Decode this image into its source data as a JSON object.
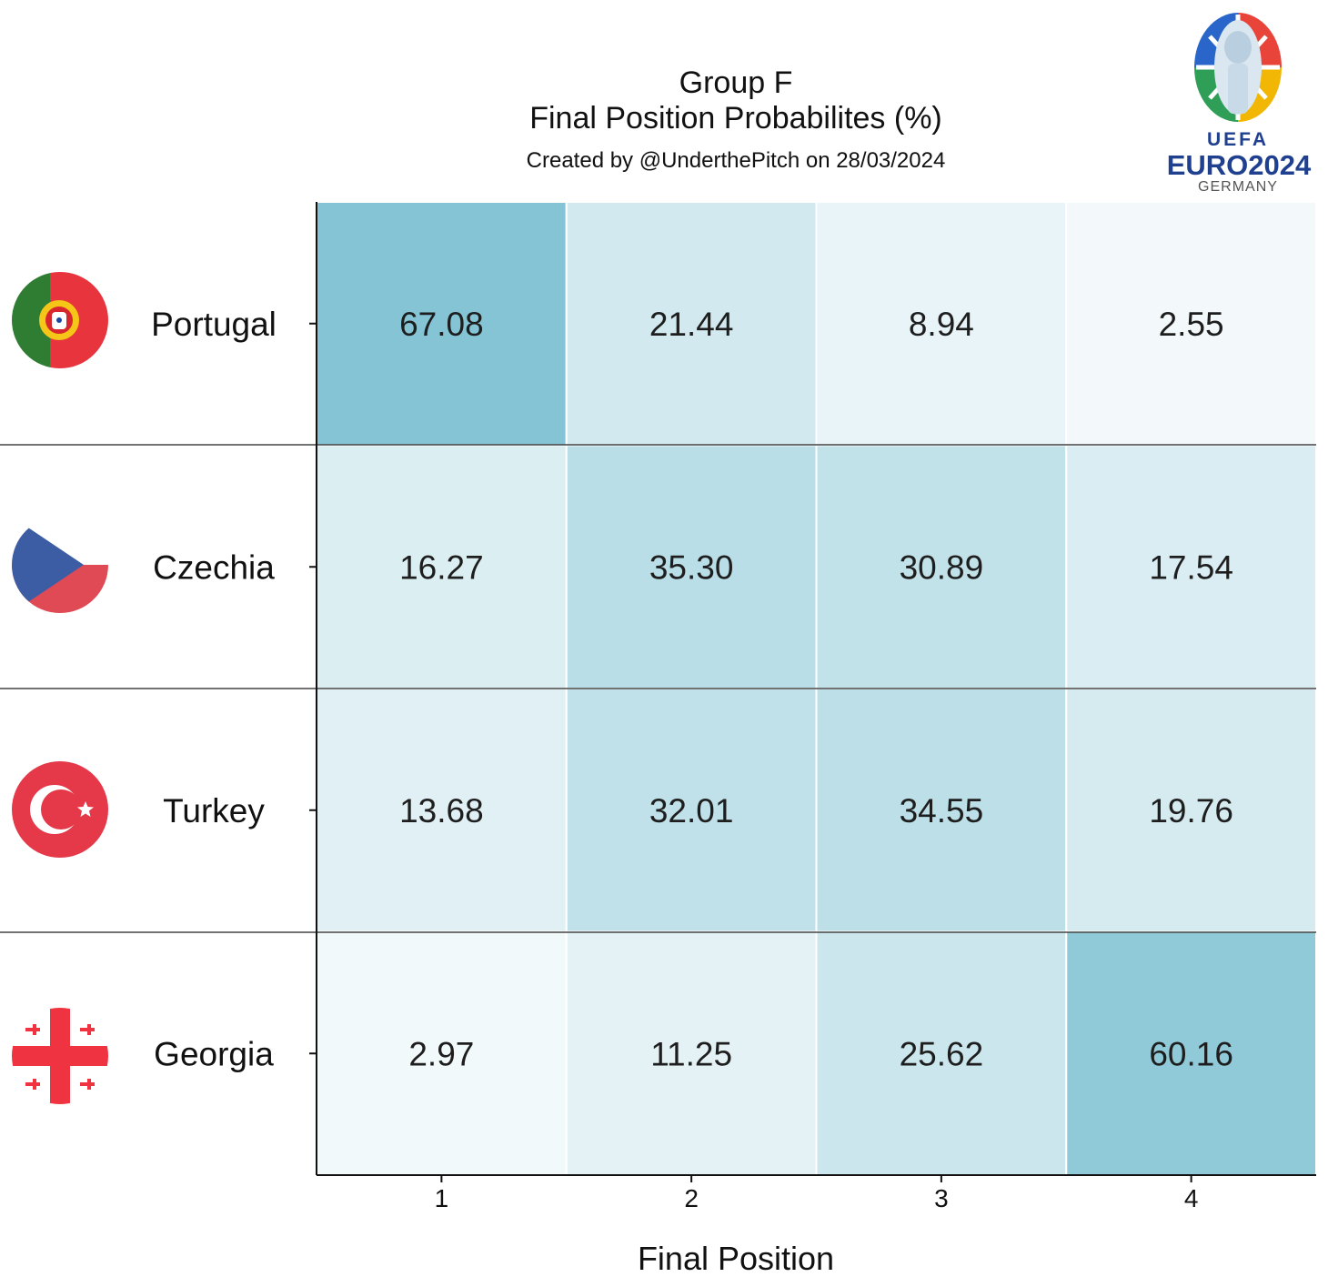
{
  "chart_data": {
    "type": "heatmap",
    "title": "Group F",
    "subtitle": "Final Position Probabilites (%)",
    "credit": "Created by @UnderthePitch on 28/03/2024",
    "xlabel": "Final Position",
    "ylabel": "",
    "x": [
      "1",
      "2",
      "3",
      "4"
    ],
    "y": [
      "Portugal",
      "Czechia",
      "Turkey",
      "Georgia"
    ],
    "values": [
      [
        67.08,
        21.44,
        8.94,
        2.55
      ],
      [
        16.27,
        35.3,
        30.89,
        17.54
      ],
      [
        13.68,
        32.01,
        34.55,
        19.76
      ],
      [
        2.97,
        11.25,
        25.62,
        60.16
      ]
    ],
    "value_labels": [
      [
        "67.08",
        "21.44",
        "8.94",
        "2.55"
      ],
      [
        "16.27",
        "35.30",
        "30.89",
        "17.54"
      ],
      [
        "13.68",
        "32.01",
        "34.55",
        "19.76"
      ],
      [
        "2.97",
        "11.25",
        "25.62",
        "60.16"
      ]
    ],
    "colorscale": {
      "low": "#f7fbfc",
      "high": "#7fc2d3",
      "vmin": 0,
      "vmax": 70
    },
    "grid": false,
    "row_flags": [
      "portugal-flag-icon",
      "czechia-flag-icon",
      "turkey-flag-icon",
      "georgia-flag-icon"
    ]
  },
  "logo": {
    "top": "UEFA",
    "main": "EURO2024",
    "country": "GERMANY",
    "icon": "euro-2024-trophy-logo"
  }
}
